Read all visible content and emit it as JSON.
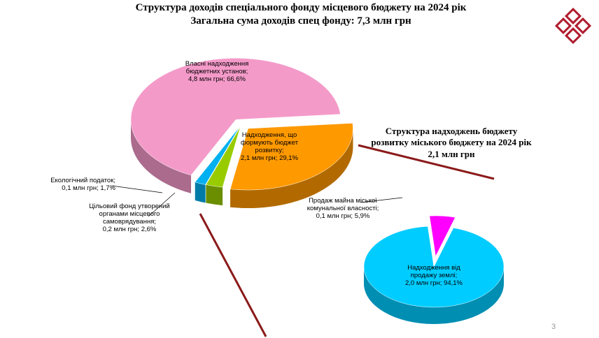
{
  "chart_data": [
    {
      "type": "pie",
      "title": "Структура доходів спеціального фонду  місцевого бюджету на 2024 рік",
      "subtitle": "Загальна сума доходів спец фонду: 7,3 млн грн",
      "categories": [
        "Надходження, що формують бюджет розвитку;",
        "Цільовий фонд утворений органами місцевого самоврядування;",
        "Екологічний податок;",
        "Власні надходження бюджетних установ;"
      ],
      "values": [
        29.1,
        2.6,
        1.7,
        66.6
      ],
      "value_labels": [
        "2,1 млн грн; 29,1%",
        "0,2 млн грн; 2,6%",
        "0,1 млн грн; 1,7%",
        "4,8 млн грн; 66,6%"
      ],
      "colors": [
        "#ff9900",
        "#99cc00",
        "#00b0f0",
        "#f49ac9"
      ]
    },
    {
      "type": "pie",
      "title": "Структура надходжень бюджету розвитку міського бюджету на 2024 рік",
      "subtitle": "2,1 млн грн",
      "categories": [
        "Продаж майна міської комунальної власності;",
        "Надходження від продажу землі;"
      ],
      "values": [
        5.9,
        94.1
      ],
      "value_labels": [
        "0,1 млн грн; 5,9%",
        "2,0 млн грн; 94,1%"
      ],
      "colors": [
        "#ff00ff",
        "#00ccff"
      ]
    }
  ],
  "slide": {
    "page_number": "3"
  }
}
